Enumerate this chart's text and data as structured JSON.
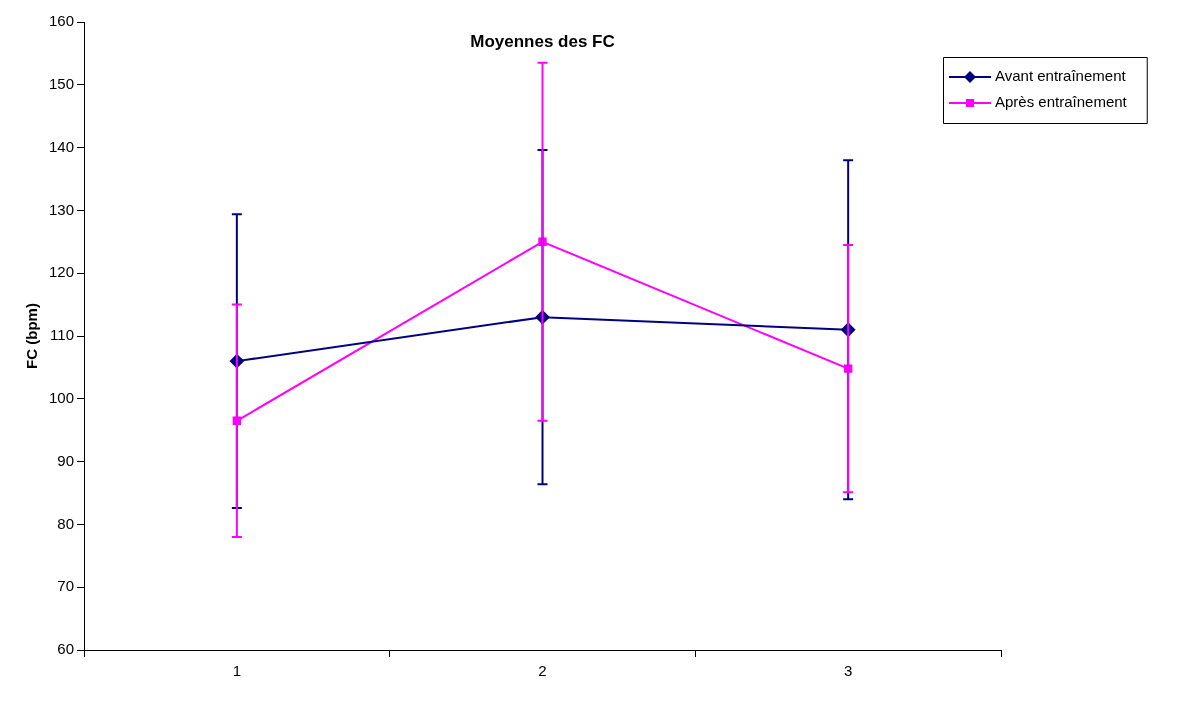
{
  "chart_data": {
    "type": "line",
    "title": "Moyennes des FC",
    "ylabel": "FC (bpm)",
    "categories": [
      "1",
      "2",
      "3"
    ],
    "series": [
      {
        "name": "Avant entraînement",
        "color": "#000080",
        "marker": "diamond",
        "values": [
          106,
          113,
          111
        ],
        "errors": [
          23.4,
          26.6,
          27
        ]
      },
      {
        "name": "Après entraînement",
        "color": "#ff00ff",
        "marker": "square",
        "values": [
          96.5,
          125,
          104.8
        ],
        "errors": [
          18.5,
          28.5,
          19.7
        ]
      }
    ],
    "ylim": [
      60,
      160
    ],
    "yticks": [
      60,
      70,
      80,
      90,
      100,
      110,
      120,
      130,
      140,
      150,
      160
    ],
    "grid": false,
    "legend": "top right",
    "line_style": "solid"
  }
}
